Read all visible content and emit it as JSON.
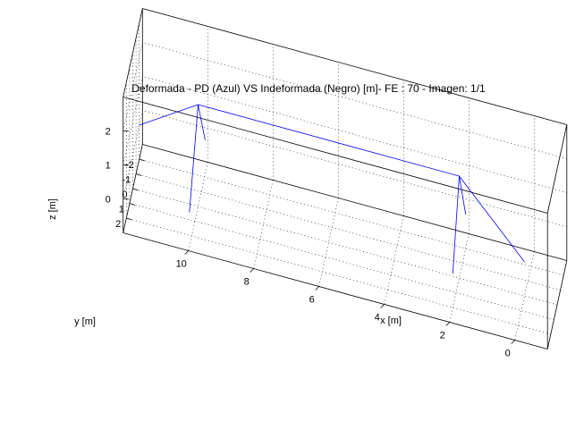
{
  "chart_data": {
    "type": "line",
    "subtype": "3d-wireframe",
    "title": "Deformada - PD (Azul) VS Indeformada (Negro) [m]- FE : 70  - Imagen: 1/1",
    "xlabel": "x [m]",
    "ylabel": "y [m]",
    "zlabel": "z [m]",
    "xlim": [
      -1,
      12
    ],
    "ylim": [
      -3,
      3
    ],
    "zlim": [
      -1,
      3
    ],
    "x_ticks": [
      0,
      2,
      4,
      6,
      8,
      10
    ],
    "y_ticks": [
      -2,
      -1,
      0,
      1,
      2
    ],
    "z_ticks": [
      0,
      1,
      2
    ],
    "grid": true,
    "legend": "none",
    "colors": {
      "deformed": "#0000ff",
      "undeformed": "#000000",
      "box": "#000000"
    },
    "series": [
      {
        "name": "Azul",
        "segments": [
          {
            "from": [
              10,
              0,
              2
            ],
            "to": [
              2,
              0,
              2
            ]
          },
          {
            "from": [
              10,
              0,
              2
            ],
            "to": [
              12,
              -2,
              0
            ]
          },
          {
            "from": [
              10,
              0,
              2
            ],
            "to": [
              10,
              2.7,
              0
            ]
          },
          {
            "from": [
              10,
              0,
              2
            ],
            "to": [
              10,
              -2.2,
              0
            ]
          },
          {
            "from": [
              2,
              0,
              2
            ],
            "to": [
              2,
              -2,
              0
            ]
          },
          {
            "from": [
              2,
              0,
              2
            ],
            "to": [
              2,
              2,
              0
            ]
          },
          {
            "from": [
              2,
              0,
              2
            ],
            "to": [
              0,
              0,
              0
            ]
          }
        ]
      }
    ]
  }
}
